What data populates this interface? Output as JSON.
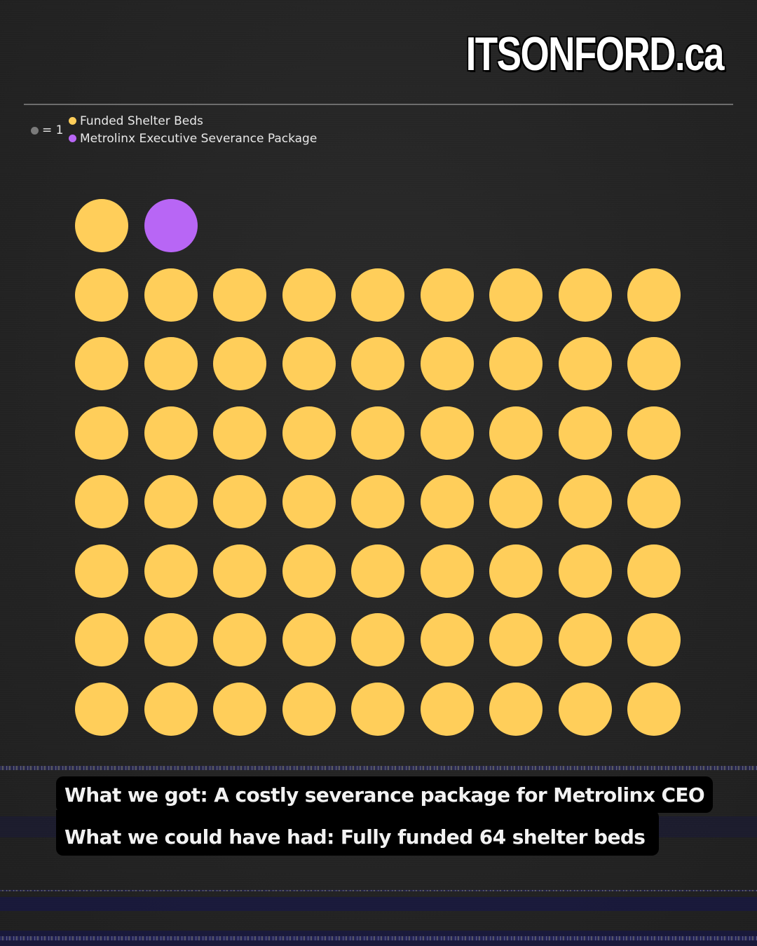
{
  "brand": {
    "title": "ITSONFORD.ca"
  },
  "legend": {
    "unit_label": "= 1",
    "unit_color": "#7a7a7a",
    "items": [
      {
        "label": "Funded Shelter Beds",
        "color": "#FFCE5A"
      },
      {
        "label": "Metrolinx Executive Severance Package",
        "color": "#B866F5"
      }
    ]
  },
  "captions": {
    "line1": "What we got: A costly severance package for Metrolinx CEO",
    "line2": "What we could have had: Fully funded 64 shelter beds"
  },
  "chart_data": {
    "type": "pictogram",
    "title": "",
    "unit": "each dot = 1",
    "categories": [
      "Funded Shelter Beds",
      "Metrolinx Executive Severance Package"
    ],
    "values": [
      64,
      1
    ],
    "colors": [
      "#FFCE5A",
      "#B866F5"
    ],
    "layout": {
      "columns": 9,
      "rows": 8,
      "first_row": [
        "Funded Shelter Beds",
        "Metrolinx Executive Severance Package"
      ],
      "remaining_rows": 7,
      "legend_position": "top-left"
    }
  }
}
